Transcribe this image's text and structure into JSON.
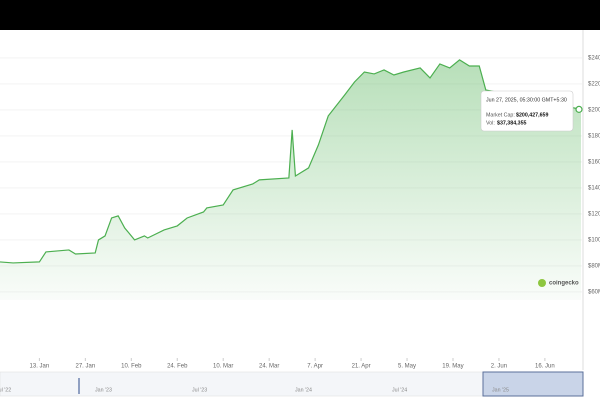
{
  "chart_data": {
    "type": "area",
    "x": [
      "2025-01-01",
      "2025-01-05",
      "2025-01-13",
      "2025-01-15",
      "2025-01-22",
      "2025-01-24",
      "2025-01-30",
      "2025-01-31",
      "2025-02-02",
      "2025-02-04",
      "2025-02-06",
      "2025-02-08",
      "2025-02-11",
      "2025-02-14",
      "2025-02-15",
      "2025-02-20",
      "2025-02-24",
      "2025-02-27",
      "2025-03-04",
      "2025-03-05",
      "2025-03-10",
      "2025-03-13",
      "2025-03-19",
      "2025-03-21",
      "2025-03-30",
      "2025-03-31",
      "2025-04-01",
      "2025-04-05",
      "2025-04-08",
      "2025-04-11",
      "2025-04-16",
      "2025-04-19",
      "2025-04-22",
      "2025-04-25",
      "2025-04-28",
      "2025-05-01",
      "2025-05-04",
      "2025-05-09",
      "2025-05-12",
      "2025-05-15",
      "2025-05-18",
      "2025-05-21",
      "2025-05-24",
      "2025-05-27",
      "2025-05-29",
      "2025-06-27"
    ],
    "values": [
      83.1,
      82.3,
      83.1,
      90.8,
      92.3,
      89.2,
      90,
      100,
      103.1,
      116.9,
      118.5,
      109.2,
      100,
      103.1,
      101.5,
      107.7,
      110.8,
      116.9,
      121.5,
      124.6,
      126.9,
      138.5,
      143.1,
      146.2,
      147.7,
      184.6,
      149.2,
      155.4,
      173.1,
      195.4,
      211.5,
      221.5,
      229.2,
      227.7,
      230.8,
      226.9,
      229.2,
      232.3,
      224.6,
      235.4,
      232.3,
      238.5,
      233.8,
      233.8,
      215.4,
      200.427659
    ],
    "color": "#4caf50",
    "xlim": [
      "2025-01-01",
      "2025-06-27"
    ],
    "xticks": [
      {
        "value": "2025-01-13",
        "label": "13. Jan"
      },
      {
        "value": "2025-01-27",
        "label": "27. Jan"
      },
      {
        "value": "2025-02-10",
        "label": "10. Feb"
      },
      {
        "value": "2025-02-24",
        "label": "24. Feb"
      },
      {
        "value": "2025-03-10",
        "label": "10. Mar"
      },
      {
        "value": "2025-03-24",
        "label": "24. Mar"
      },
      {
        "value": "2025-04-07",
        "label": "7. Apr"
      },
      {
        "value": "2025-04-21",
        "label": "21. Apr"
      },
      {
        "value": "2025-05-05",
        "label": "5. May"
      },
      {
        "value": "2025-05-19",
        "label": "19. May"
      },
      {
        "value": "2025-06-02",
        "label": "2. Jun"
      },
      {
        "value": "2025-06-16",
        "label": "16. Jun"
      }
    ],
    "ylim": [
      53.8,
      261.5
    ],
    "yticks": [
      {
        "value": 60,
        "label": "$60M"
      },
      {
        "value": 80,
        "label": "$80M"
      },
      {
        "value": 100,
        "label": "$100M"
      },
      {
        "value": 120,
        "label": "$120M"
      },
      {
        "value": 140,
        "label": "$140M"
      },
      {
        "value": 160,
        "label": "$160M"
      },
      {
        "value": 180,
        "label": "$180M"
      },
      {
        "value": 200,
        "label": "$200M"
      },
      {
        "value": 220,
        "label": "$220M"
      },
      {
        "value": 240,
        "label": "$240M"
      }
    ],
    "grid": true,
    "tooltip": {
      "date": "Jun 27, 2025, 05:30:00 GMT+5:30",
      "cap_label": "Market Cap:",
      "cap_value": "$200,427,659",
      "vol_label": "Vol:",
      "vol_value": "$37,384,355"
    },
    "watermark": "coingecko",
    "navigator_labels": [
      "Jul '22",
      "Jan '23",
      "Jul '23",
      "Jan '24",
      "Jul '24",
      "Jan '25"
    ]
  }
}
